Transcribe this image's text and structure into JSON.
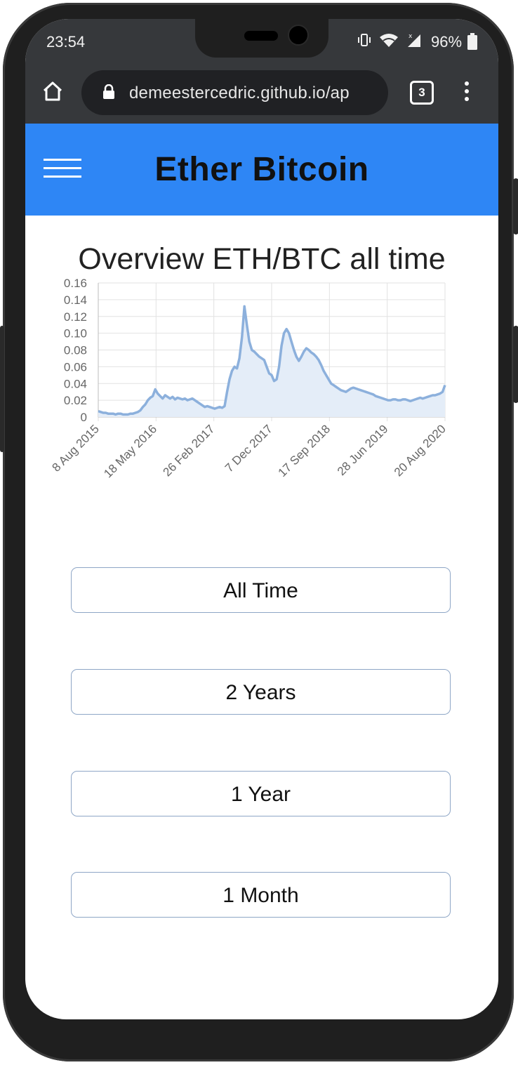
{
  "status_bar": {
    "time": "23:54",
    "battery": "96%",
    "icons": [
      "vibrate-icon",
      "wifi-icon",
      "signal-icon",
      "battery-icon"
    ]
  },
  "browser": {
    "url": "demeestercedric.github.io/ap",
    "tab_count": "3",
    "icons": [
      "home-icon",
      "lock-icon",
      "tabs-icon",
      "more-vert-icon"
    ]
  },
  "app": {
    "title": "Ether Bitcoin",
    "menu_icon": "hamburger-icon",
    "accent_color": "#2e86f5"
  },
  "chart_title": "Overview ETH/BTC all time",
  "chart_data": {
    "type": "area",
    "title": "Overview ETH/BTC all time",
    "xlabel": "",
    "ylabel": "",
    "ylim": [
      0,
      0.16
    ],
    "yticks": [
      "0.16",
      "0.14",
      "0.12",
      "0.10",
      "0.08",
      "0.06",
      "0.04",
      "0.02",
      "0"
    ],
    "xticks": [
      "8 Aug 2015",
      "18 May 2016",
      "26 Feb 2017",
      "7 Dec 2017",
      "17 Sep 2018",
      "28 Jun 2019",
      "20 Aug 2020"
    ],
    "grid": true,
    "line_color": "#8cb0dc",
    "fill_color": "#e4edf8",
    "series": [
      {
        "values": [
          0.007,
          0.006,
          0.005,
          0.005,
          0.004,
          0.004,
          0.004,
          0.003,
          0.004,
          0.004,
          0.003,
          0.003,
          0.003,
          0.004,
          0.004,
          0.005,
          0.006,
          0.008,
          0.012,
          0.015,
          0.02,
          0.023,
          0.025,
          0.033,
          0.028,
          0.025,
          0.022,
          0.026,
          0.024,
          0.022,
          0.024,
          0.021,
          0.023,
          0.022,
          0.021,
          0.022,
          0.02,
          0.021,
          0.022,
          0.02,
          0.018,
          0.016,
          0.014,
          0.012,
          0.013,
          0.012,
          0.011,
          0.01,
          0.011,
          0.012,
          0.011,
          0.013,
          0.03,
          0.045,
          0.055,
          0.06,
          0.058,
          0.07,
          0.095,
          0.132,
          0.11,
          0.09,
          0.08,
          0.078,
          0.075,
          0.072,
          0.07,
          0.068,
          0.06,
          0.052,
          0.05,
          0.043,
          0.045,
          0.06,
          0.085,
          0.1,
          0.105,
          0.1,
          0.09,
          0.08,
          0.072,
          0.067,
          0.072,
          0.078,
          0.082,
          0.08,
          0.077,
          0.075,
          0.072,
          0.068,
          0.062,
          0.055,
          0.05,
          0.045,
          0.04,
          0.038,
          0.036,
          0.034,
          0.032,
          0.031,
          0.03,
          0.032,
          0.034,
          0.035,
          0.034,
          0.033,
          0.032,
          0.031,
          0.03,
          0.029,
          0.028,
          0.027,
          0.025,
          0.024,
          0.023,
          0.022,
          0.021,
          0.02,
          0.02,
          0.021,
          0.021,
          0.02,
          0.02,
          0.021,
          0.021,
          0.02,
          0.019,
          0.02,
          0.021,
          0.022,
          0.023,
          0.022,
          0.023,
          0.024,
          0.025,
          0.026,
          0.026,
          0.027,
          0.028,
          0.03,
          0.038
        ]
      }
    ]
  },
  "range_buttons": [
    {
      "label": "All Time"
    },
    {
      "label": "2 Years"
    },
    {
      "label": "1 Year"
    },
    {
      "label": "1 Month"
    }
  ]
}
